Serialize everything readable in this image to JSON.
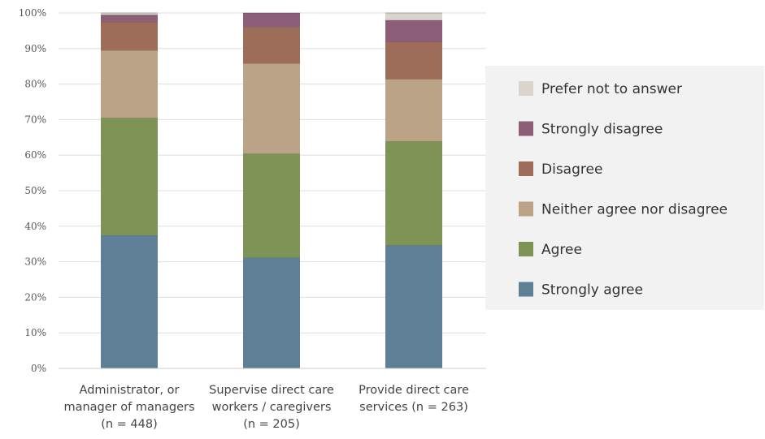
{
  "chart_data": {
    "type": "bar",
    "stacked": true,
    "normalized_percent": true,
    "categories": [
      [
        "Administrator, or",
        "manager of managers",
        "(n = 448)"
      ],
      [
        "Supervise direct care",
        "workers / caregivers",
        "(n = 205)"
      ],
      [
        "Provide direct care",
        "services (n = 263)"
      ]
    ],
    "series": [
      {
        "name": "Strongly agree",
        "color": "#5f7f96",
        "values": [
          37.5,
          31.2,
          34.6
        ]
      },
      {
        "name": "Agree",
        "color": "#7d9456",
        "values": [
          33.0,
          29.2,
          29.3
        ]
      },
      {
        "name": "Neither agree nor disagree",
        "color": "#bba388",
        "values": [
          19.0,
          25.4,
          17.5
        ]
      },
      {
        "name": "Disagree",
        "color": "#9e6d5a",
        "values": [
          8.0,
          10.3,
          10.5
        ]
      },
      {
        "name": "Strongly disagree",
        "color": "#8d5e77",
        "values": [
          2.0,
          3.9,
          6.1
        ]
      },
      {
        "name": "Prefer not to answer",
        "color": "#d9d5cc",
        "values": [
          0.5,
          0.0,
          2.0
        ]
      }
    ],
    "y_ticks": [
      "0%",
      "10%",
      "20%",
      "30%",
      "40%",
      "50%",
      "60%",
      "70%",
      "80%",
      "90%",
      "100%"
    ],
    "ylim": [
      0,
      100
    ],
    "grid": true,
    "legend": {
      "position": "right",
      "order": [
        "Prefer not to answer",
        "Strongly disagree",
        "Disagree",
        "Neither agree nor disagree",
        "Agree",
        "Strongly agree"
      ]
    }
  }
}
